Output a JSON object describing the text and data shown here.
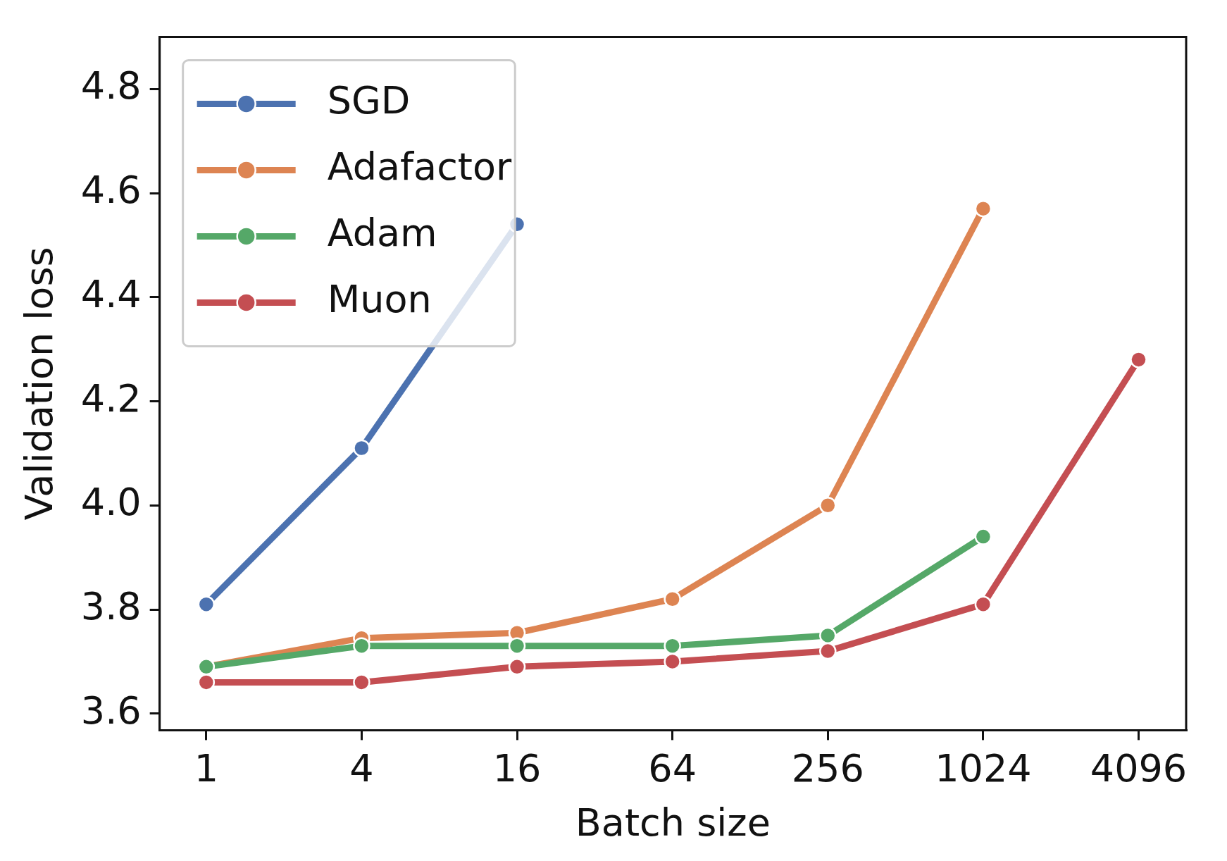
{
  "chart_data": {
    "type": "line",
    "xlabel": "Batch size",
    "ylabel": "Validation loss",
    "log": "x",
    "x": [
      1,
      4,
      16,
      64,
      256,
      1024,
      4096
    ],
    "xlim": [
      0.66,
      6260
    ],
    "xticks": [
      1,
      4,
      16,
      64,
      256,
      1024,
      4096
    ],
    "ylim": [
      3.568,
      4.9
    ],
    "yticks": [
      3.6,
      3.8,
      {
        "value": 4.0,
        "label": "4.0"
      },
      4.2,
      4.4,
      4.6,
      4.8
    ],
    "series": [
      {
        "name": "SGD",
        "color": "#4c72b0",
        "values": [
          3.81,
          4.11,
          4.54,
          null,
          null,
          null,
          null
        ]
      },
      {
        "name": "Adafactor",
        "color": "#dd8452",
        "values": [
          3.69,
          3.745,
          3.755,
          3.82,
          4.0,
          4.57,
          null
        ]
      },
      {
        "name": "Adam",
        "color": "#55a868",
        "values": [
          3.69,
          3.73,
          3.73,
          3.73,
          3.75,
          3.94,
          null
        ]
      },
      {
        "name": "Muon",
        "color": "#c44e52",
        "values": [
          3.66,
          3.66,
          3.69,
          3.7,
          3.72,
          3.81,
          4.28
        ]
      }
    ],
    "legend": "top left",
    "grid": false,
    "marker": "circle",
    "line_style": "solid"
  }
}
